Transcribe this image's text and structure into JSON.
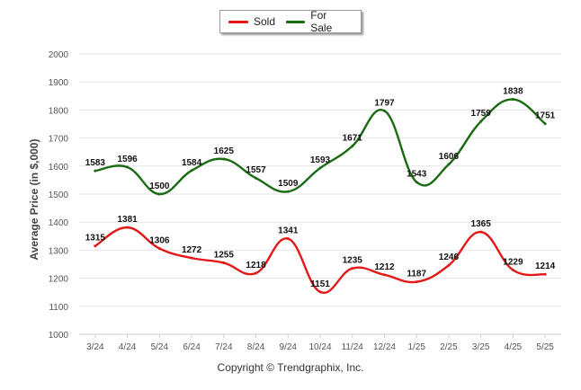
{
  "chart_data": {
    "type": "line",
    "title": "",
    "xlabel": "",
    "ylabel": "Average Price (in $,000)",
    "categories": [
      "3/24",
      "4/24",
      "5/24",
      "6/24",
      "7/24",
      "8/24",
      "9/24",
      "10/24",
      "11/24",
      "12/24",
      "1/25",
      "2/25",
      "3/25",
      "4/25",
      "5/25"
    ],
    "yticks": [
      "1000",
      "1100",
      "1200",
      "1300",
      "1400",
      "1500",
      "1600",
      "1700",
      "1800",
      "1900",
      "2000"
    ],
    "ylim": [
      1000,
      2000
    ],
    "grid": true,
    "legend_position": "top",
    "series": [
      {
        "name": "Sold",
        "color": "#e31818",
        "values": [
          1315,
          1381,
          1306,
          1272,
          1255,
          1218,
          1341,
          1151,
          1235,
          1212,
          1187,
          1246,
          1365,
          1229,
          1214
        ]
      },
      {
        "name": "For Sale",
        "color": "#1a6b12",
        "values": [
          1583,
          1596,
          1500,
          1584,
          1625,
          1557,
          1509,
          1593,
          1671,
          1797,
          1543,
          1606,
          1759,
          1838,
          1751
        ]
      }
    ],
    "footer": "Copyright © Trendgraphix, Inc."
  }
}
